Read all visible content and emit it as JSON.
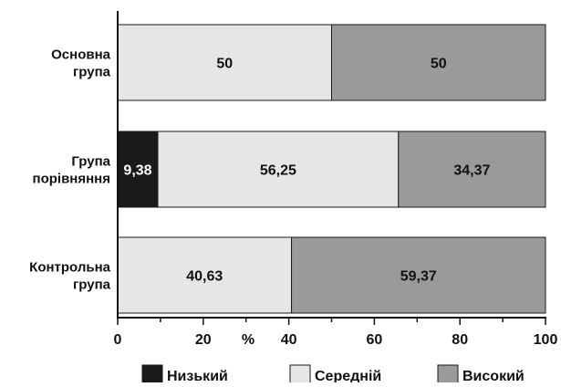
{
  "chart_data": {
    "type": "bar",
    "orientation": "horizontal",
    "stacked": true,
    "categories": [
      [
        "Основна",
        "група"
      ],
      [
        "Група",
        "порівняння"
      ],
      [
        "Контрольна",
        "група"
      ]
    ],
    "series": [
      {
        "name": "Низький",
        "values": [
          0,
          9.38,
          0
        ],
        "labels": [
          "",
          "9,38",
          ""
        ],
        "color": "#1a1a1a"
      },
      {
        "name": "Середній",
        "values": [
          50,
          56.25,
          40.63
        ],
        "labels": [
          "50",
          "56,25",
          "40,63"
        ],
        "color": "#e6e6e6"
      },
      {
        "name": "Високий",
        "values": [
          50,
          34.37,
          59.37
        ],
        "labels": [
          "50",
          "34,37",
          "59,37"
        ],
        "color": "#9a9a9a"
      }
    ],
    "x_ticks": [
      "0",
      "20",
      "40",
      "60",
      "80",
      "100"
    ],
    "x_tick_values": [
      0,
      20,
      40,
      60,
      80,
      100
    ],
    "x_unit": "%",
    "xlim": [
      0,
      100
    ],
    "grid": false,
    "legend_position": "bottom"
  }
}
